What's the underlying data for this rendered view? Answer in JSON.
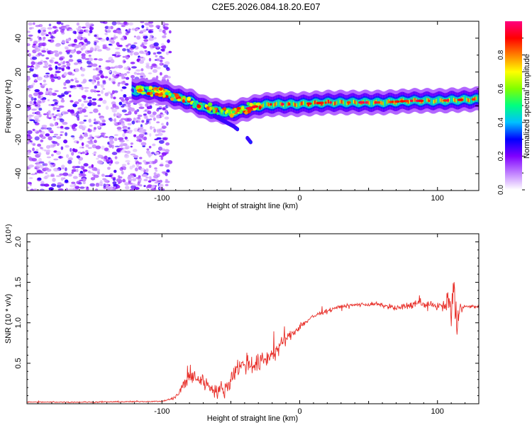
{
  "title": "C2E5.2026.084.18.20.E07",
  "chart_data": [
    {
      "type": "heatmap",
      "title": "C2E5.2026.084.18.20.E07",
      "xlabel": "Height of straight line (km)",
      "ylabel": "Frequency (Hz)",
      "xlim": [
        -198,
        130
      ],
      "ylim": [
        -50,
        50
      ],
      "xticks": [
        -100,
        0,
        100
      ],
      "xtick_labels": [
        "-100",
        "0",
        "100"
      ],
      "yticks": [
        40,
        20,
        0,
        -20,
        -40
      ],
      "ytick_labels": [
        "40",
        "20",
        "0",
        "-20",
        "-40"
      ],
      "colorbar": {
        "label": "Normalized spectral amplitude",
        "range": [
          0,
          1
        ],
        "ticks": [
          0,
          0.2,
          0.4,
          0.6,
          0.8
        ],
        "tick_labels": [
          "0.0",
          "0.2",
          "0.4",
          "0.6",
          "0.8"
        ],
        "colors": [
          "#ffffff",
          "#c080ff",
          "#8000ff",
          "#0000ff",
          "#00c0ff",
          "#00ff80",
          "#80ff00",
          "#ffff00",
          "#ff8000",
          "#ff0000",
          "#ff0080"
        ]
      },
      "noise_region_x": [
        -198,
        -98
      ],
      "ridge": {
        "x": [
          -120,
          -110,
          -100,
          -90,
          -80,
          -70,
          -60,
          -50,
          -40,
          -30,
          -20,
          -10,
          0,
          20,
          40,
          60,
          80,
          100,
          130
        ],
        "freq": [
          9,
          9,
          8,
          5,
          3,
          -1,
          -3,
          -4,
          -2,
          0,
          1,
          1,
          1,
          2,
          2,
          2,
          3,
          3,
          4
        ],
        "amplitude": [
          0.45,
          0.5,
          0.55,
          0.6,
          0.55,
          0.55,
          0.6,
          0.6,
          0.7,
          0.8,
          0.85,
          0.85,
          0.9,
          0.9,
          0.85,
          0.8,
          0.85,
          0.8,
          0.85
        ]
      },
      "branch": {
        "x": [
          -62,
          -55,
          -48,
          -40,
          -35
        ],
        "freq": [
          -6,
          -9,
          -12,
          -17,
          -22
        ]
      }
    },
    {
      "type": "line",
      "xlabel": "Height of straight line (km)",
      "ylabel": "SNR (10 * v/v)",
      "y_multiplier_label": "(x10⁴)",
      "xlim": [
        -198,
        130
      ],
      "ylim": [
        0,
        2.1
      ],
      "xticks": [
        -100,
        0,
        100
      ],
      "xtick_labels": [
        "-100",
        "0",
        "100"
      ],
      "yticks": [
        2.0,
        1.5,
        1.0,
        0.5
      ],
      "ytick_labels": [
        "2.0",
        "1.5",
        "1.0",
        "0.5"
      ],
      "color": "#e8302a",
      "series": [
        {
          "name": "SNR",
          "x": [
            -198,
            -150,
            -100,
            -95,
            -90,
            -85,
            -80,
            -75,
            -70,
            -65,
            -60,
            -55,
            -50,
            -45,
            -40,
            -35,
            -30,
            -25,
            -20,
            -15,
            -10,
            -5,
            0,
            5,
            10,
            15,
            20,
            25,
            30,
            35,
            40,
            45,
            50,
            55,
            60,
            65,
            70,
            75,
            80,
            85,
            90,
            95,
            100,
            105,
            108,
            110,
            112,
            114,
            116,
            120,
            125,
            130
          ],
          "y": [
            0.02,
            0.02,
            0.03,
            0.05,
            0.08,
            0.2,
            0.35,
            0.32,
            0.28,
            0.2,
            0.15,
            0.18,
            0.3,
            0.45,
            0.5,
            0.48,
            0.5,
            0.55,
            0.62,
            0.7,
            0.8,
            0.88,
            0.95,
            1.02,
            1.08,
            1.12,
            1.15,
            1.18,
            1.2,
            1.21,
            1.22,
            1.23,
            1.22,
            1.23,
            1.22,
            1.2,
            1.18,
            1.2,
            1.22,
            1.24,
            1.23,
            1.22,
            1.21,
            1.2,
            1.3,
            1.1,
            1.5,
            0.9,
            1.2,
            1.2,
            1.2,
            1.2
          ],
          "noise_amplitude": [
            0.01,
            0.01,
            0.01,
            0.02,
            0.04,
            0.12,
            0.18,
            0.16,
            0.14,
            0.12,
            0.1,
            0.12,
            0.15,
            0.18,
            0.18,
            0.18,
            0.18,
            0.16,
            0.14,
            0.12,
            0.1,
            0.08,
            0.07,
            0.06,
            0.05,
            0.04,
            0.04,
            0.03,
            0.03,
            0.03,
            0.03,
            0.03,
            0.03,
            0.03,
            0.03,
            0.04,
            0.05,
            0.06,
            0.07,
            0.07,
            0.07,
            0.06,
            0.06,
            0.08,
            0.25,
            0.3,
            0.5,
            0.35,
            0.1,
            0.03,
            0.03,
            0.03
          ]
        }
      ]
    }
  ]
}
